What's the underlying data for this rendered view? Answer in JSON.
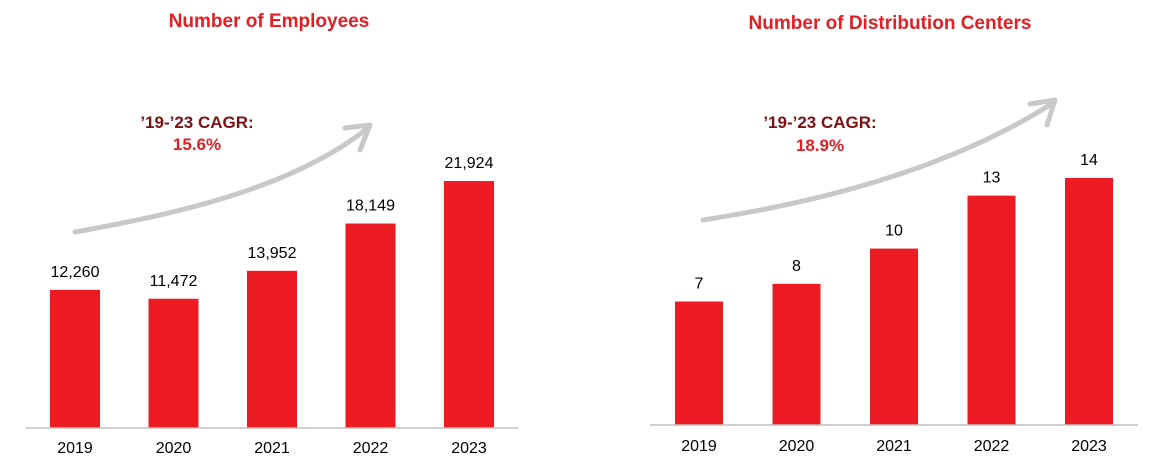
{
  "colors": {
    "bar": "#ed1c24",
    "title": "#e31e24",
    "cagr_label": "#7b1113",
    "cagr_value": "#e31e24",
    "arrow": "#c8c8c8"
  },
  "chart_data": [
    {
      "type": "bar",
      "title": "Number of Employees",
      "categories": [
        "2019",
        "2020",
        "2021",
        "2022",
        "2023"
      ],
      "values": [
        12260,
        11472,
        13952,
        18149,
        21924
      ],
      "value_labels": [
        "12,260",
        "11,472",
        "13,952",
        "18,149",
        "21,924"
      ],
      "annotation": {
        "label": "’19-’23 CAGR:",
        "value": "15.6%"
      },
      "grid": false,
      "legend": "none"
    },
    {
      "type": "bar",
      "title": "Number of Distribution Centers",
      "categories": [
        "2019",
        "2020",
        "2021",
        "2022",
        "2023"
      ],
      "values": [
        7,
        8,
        10,
        13,
        14
      ],
      "value_labels": [
        "7",
        "8",
        "10",
        "13",
        "14"
      ],
      "annotation": {
        "label": "’19-’23 CAGR:",
        "value": "18.9%"
      },
      "grid": false,
      "legend": "none"
    }
  ]
}
